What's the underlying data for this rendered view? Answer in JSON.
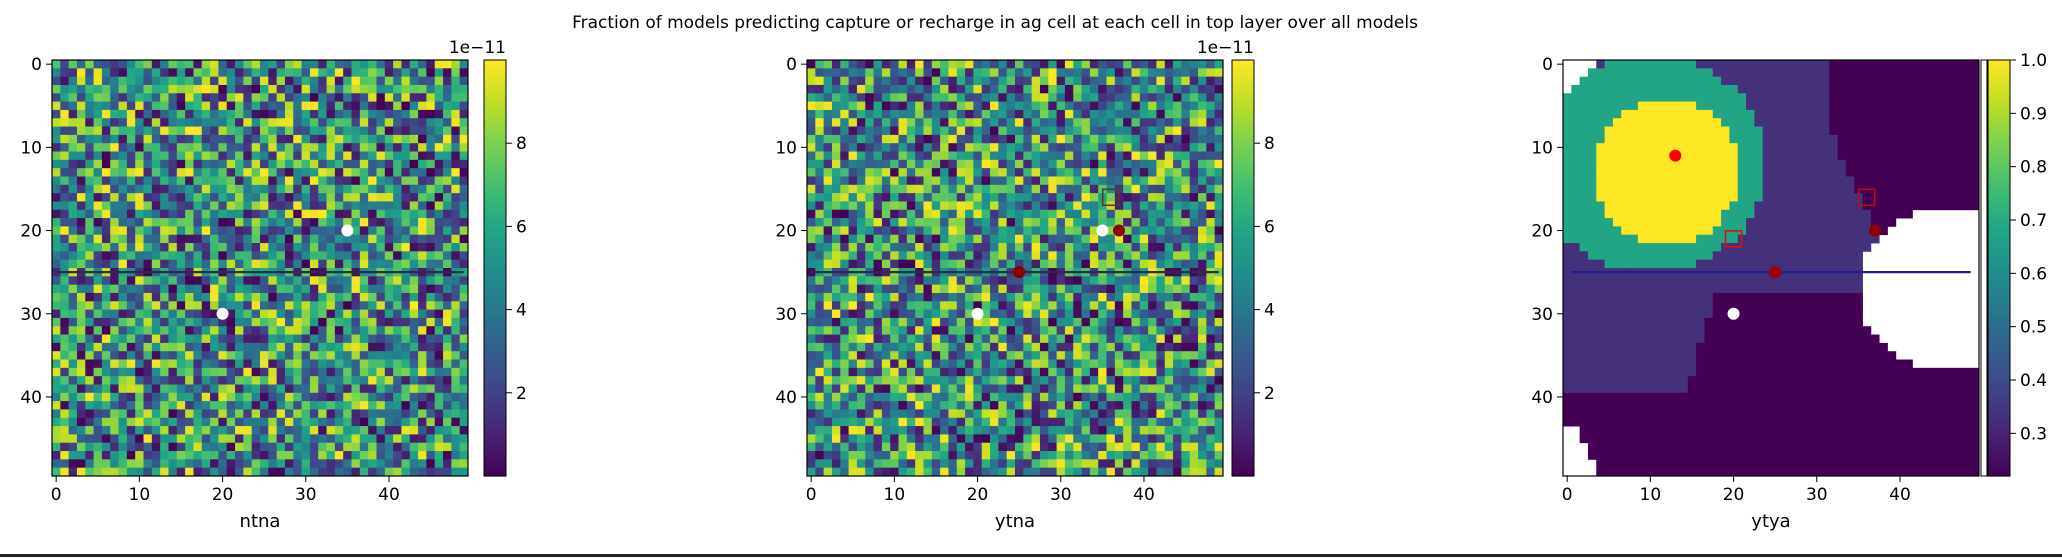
{
  "suptitle": "Fraction of models predicting capture or recharge in ag cell at each cell in top layer over all models",
  "chart_data": [
    {
      "type": "heatmap",
      "xlabel": "ntna",
      "grid": "50x50 cells, random-looking values",
      "xticks": [
        "0",
        "10",
        "20",
        "30",
        "40"
      ],
      "yticks": [
        "0",
        "10",
        "20",
        "30",
        "40"
      ],
      "xlim": [
        -0.5,
        49.5
      ],
      "ylim": [
        49.5,
        -0.5
      ],
      "colorbar": {
        "vmin": 0,
        "vmax": 1e-10,
        "ticks": [
          "2",
          "4",
          "6",
          "8"
        ],
        "tick_values": [
          2,
          4,
          6,
          8
        ],
        "scale_max": 10,
        "offset_label": "1e−11"
      },
      "colormap": "viridis",
      "line": {
        "row": 25,
        "x": [
          0,
          49
        ],
        "color": "#2b2b4a"
      },
      "markers": [
        {
          "x": 35,
          "y": 20,
          "shape": "circle",
          "color": "#ffffff"
        },
        {
          "x": 20,
          "y": 30,
          "shape": "circle",
          "color": "#ffffff"
        }
      ]
    },
    {
      "type": "heatmap",
      "xlabel": "ytna",
      "grid": "50x50 cells, random-looking values",
      "xticks": [
        "0",
        "10",
        "20",
        "30",
        "40"
      ],
      "yticks": [
        "0",
        "10",
        "20",
        "30",
        "40"
      ],
      "xlim": [
        -0.5,
        49.5
      ],
      "ylim": [
        49.5,
        -0.5
      ],
      "colorbar": {
        "vmin": 0,
        "vmax": 1e-10,
        "ticks": [
          "2",
          "4",
          "6",
          "8"
        ],
        "tick_values": [
          2,
          4,
          6,
          8
        ],
        "scale_max": 10,
        "offset_label": "1e−11"
      },
      "colormap": "viridis",
      "line": {
        "row": 25,
        "x": [
          0,
          49
        ],
        "color": "#2b2b4a"
      },
      "markers": [
        {
          "x": 35,
          "y": 20,
          "shape": "circle",
          "color": "#ffffff"
        },
        {
          "x": 20,
          "y": 30,
          "shape": "circle",
          "color": "#ffffff"
        },
        {
          "x": 37,
          "y": 20,
          "shape": "circle",
          "color": "#8b0000"
        },
        {
          "x": 25,
          "y": 25,
          "shape": "circle",
          "color": "#8b0000"
        },
        {
          "x": 36,
          "y": 16,
          "shape": "square",
          "color": "#5a3a2a"
        }
      ]
    },
    {
      "type": "heatmap",
      "xlabel": "ytya",
      "grid": "50x50 cells, banded fraction values with white (NaN) regions",
      "xticks": [
        "0",
        "10",
        "20",
        "30",
        "40"
      ],
      "yticks": [
        "0",
        "10",
        "20",
        "30",
        "40"
      ],
      "xlim": [
        -0.5,
        49.5
      ],
      "ylim": [
        49.5,
        -0.5
      ],
      "colorbar": {
        "vmin": 0.22,
        "vmax": 1.0,
        "ticks": [
          "0.3",
          "0.4",
          "0.5",
          "0.6",
          "0.7",
          "0.8",
          "0.9",
          "1.0"
        ],
        "tick_values": [
          0.3,
          0.4,
          0.5,
          0.6,
          0.7,
          0.8,
          0.9,
          1.0
        ],
        "offset_label": ""
      },
      "colormap": "viridis",
      "line": {
        "row": 25,
        "x": [
          0.5,
          48.5
        ],
        "color": "#1f1f8f"
      },
      "markers": [
        {
          "x": 13,
          "y": 11,
          "shape": "circle",
          "color": "#ff0000"
        },
        {
          "x": 37,
          "y": 20,
          "shape": "circle",
          "color": "#8b0000"
        },
        {
          "x": 25,
          "y": 25,
          "shape": "circle",
          "color": "#a00000"
        },
        {
          "x": 20,
          "y": 30,
          "shape": "circle",
          "color": "#ffffff"
        },
        {
          "x": 36,
          "y": 16,
          "shape": "square",
          "color": "#b01010"
        },
        {
          "x": 20,
          "y": 21,
          "shape": "square",
          "color": "#e01010"
        }
      ]
    }
  ]
}
